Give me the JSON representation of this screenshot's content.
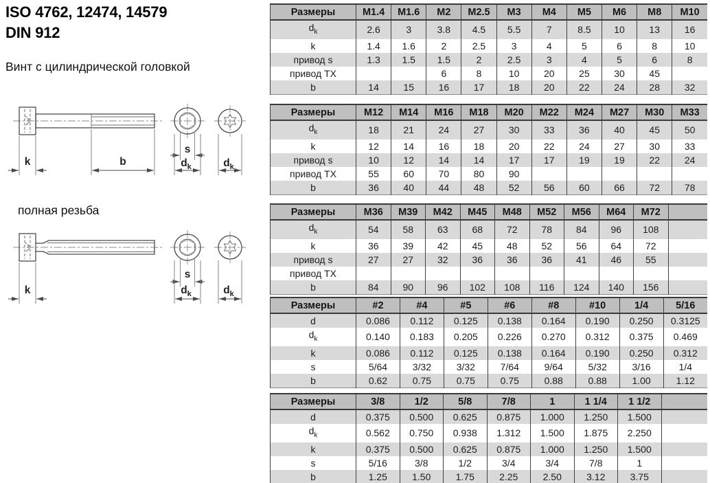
{
  "header": {
    "title_line1": "ISO 4762, 12474, 14579",
    "title_line2": "DIN 912",
    "subtitle": "Винт с цилиндрической головкой"
  },
  "drawings": {
    "full_thread_caption": "полная резьба",
    "dim_labels": {
      "k": "k",
      "b": "b",
      "s": "s",
      "dk_base": "d",
      "dk_sub": "k"
    }
  },
  "colors": {
    "header_bg": "#bfbfbf",
    "stripe_bg": "#d9d9d9",
    "border": "#3f3f3f",
    "text": "#1d1d1d"
  },
  "tables": [
    {
      "columns": [
        "Размеры",
        "M1.4",
        "M1.6",
        "M2",
        "M2.5",
        "M3",
        "M4",
        "M5",
        "M6",
        "M8",
        "M10"
      ],
      "trailing_blank": false,
      "rows": [
        {
          "label": "d_k",
          "values": [
            "2.6",
            "3",
            "3.8",
            "4.5",
            "5.5",
            "7",
            "8.5",
            "10",
            "13",
            "16"
          ]
        },
        {
          "label": "k",
          "values": [
            "1.4",
            "1.6",
            "2",
            "2.5",
            "3",
            "4",
            "5",
            "6",
            "8",
            "10"
          ]
        },
        {
          "label": "привод s",
          "values": [
            "1.3",
            "1.5",
            "1.5",
            "2",
            "2.5",
            "3",
            "4",
            "5",
            "6",
            "8"
          ]
        },
        {
          "label": "привод TX",
          "values": [
            "",
            "",
            "6",
            "8",
            "10",
            "20",
            "25",
            "30",
            "45",
            ""
          ]
        },
        {
          "label": "b",
          "values": [
            "14",
            "15",
            "16",
            "17",
            "18",
            "20",
            "22",
            "24",
            "28",
            "32"
          ]
        }
      ]
    },
    {
      "columns": [
        "Размеры",
        "M12",
        "M14",
        "M16",
        "M18",
        "M20",
        "M22",
        "M24",
        "M27",
        "M30",
        "M33"
      ],
      "trailing_blank": false,
      "rows": [
        {
          "label": "d_k",
          "values": [
            "18",
            "21",
            "24",
            "27",
            "30",
            "33",
            "36",
            "40",
            "45",
            "50"
          ]
        },
        {
          "label": "k",
          "values": [
            "12",
            "14",
            "16",
            "18",
            "20",
            "22",
            "24",
            "27",
            "30",
            "33"
          ]
        },
        {
          "label": "привод s",
          "values": [
            "10",
            "12",
            "14",
            "14",
            "17",
            "17",
            "19",
            "19",
            "22",
            "24"
          ]
        },
        {
          "label": "привод TX",
          "values": [
            "55",
            "60",
            "70",
            "80",
            "90",
            "",
            "",
            "",
            "",
            ""
          ]
        },
        {
          "label": "b",
          "values": [
            "36",
            "40",
            "44",
            "48",
            "52",
            "56",
            "60",
            "66",
            "72",
            "78"
          ]
        }
      ]
    },
    {
      "columns": [
        "Размеры",
        "M36",
        "M39",
        "M42",
        "M45",
        "M48",
        "M52",
        "M56",
        "M64",
        "M72"
      ],
      "trailing_blank": true,
      "rows": [
        {
          "label": "d_k",
          "values": [
            "54",
            "58",
            "63",
            "68",
            "72",
            "78",
            "84",
            "96",
            "108"
          ]
        },
        {
          "label": "k",
          "values": [
            "36",
            "39",
            "42",
            "45",
            "48",
            "52",
            "56",
            "64",
            "72"
          ]
        },
        {
          "label": "привод s",
          "values": [
            "27",
            "27",
            "32",
            "36",
            "36",
            "36",
            "41",
            "46",
            "55"
          ]
        },
        {
          "label": "привод TX",
          "values": [
            "",
            "",
            "",
            "",
            "",
            "",
            "",
            "",
            ""
          ]
        },
        {
          "label": "b",
          "values": [
            "84",
            "90",
            "96",
            "102",
            "108",
            "116",
            "124",
            "140",
            "156"
          ]
        }
      ]
    },
    {
      "columns": [
        "Размеры",
        "#2",
        "#4",
        "#5",
        "#6",
        "#8",
        "#10",
        "1/4",
        "5/16"
      ],
      "trailing_blank": false,
      "rows": [
        {
          "label": "d",
          "values": [
            "0.086",
            "0.112",
            "0.125",
            "0.138",
            "0.164",
            "0.190",
            "0.250",
            "0.3125"
          ]
        },
        {
          "label": "d_k",
          "values": [
            "0.140",
            "0.183",
            "0.205",
            "0.226",
            "0.270",
            "0.312",
            "0.375",
            "0.469"
          ]
        },
        {
          "label": "k",
          "values": [
            "0.086",
            "0.112",
            "0.125",
            "0.138",
            "0.164",
            "0.190",
            "0.250",
            "0.312"
          ]
        },
        {
          "label": "s",
          "values": [
            "5/64",
            "3/32",
            "3/32",
            "7/64",
            "9/64",
            "5/32",
            "3/16",
            "1/4"
          ]
        },
        {
          "label": "b",
          "values": [
            "0.62",
            "0.75",
            "0.75",
            "0.75",
            "0.88",
            "0.88",
            "1.00",
            "1.12"
          ]
        }
      ]
    },
    {
      "columns": [
        "Размеры",
        "3/8",
        "1/2",
        "5/8",
        "7/8",
        "1",
        "1 1/4",
        "1 1/2"
      ],
      "trailing_blank": true,
      "rows": [
        {
          "label": "d",
          "values": [
            "0.375",
            "0.500",
            "0.625",
            "0.875",
            "1.000",
            "1.250",
            "1.500"
          ]
        },
        {
          "label": "d_k",
          "values": [
            "0.562",
            "0.750",
            "0.938",
            "1.312",
            "1.500",
            "1.875",
            "2.250"
          ]
        },
        {
          "label": "k",
          "values": [
            "0.375",
            "0.500",
            "0.625",
            "0.875",
            "1.000",
            "1.250",
            "1.500"
          ]
        },
        {
          "label": "s",
          "values": [
            "5/16",
            "3/8",
            "1/2",
            "3/4",
            "3/4",
            "7/8",
            "1"
          ]
        },
        {
          "label": "b",
          "values": [
            "1.25",
            "1.50",
            "1.75",
            "2.25",
            "2.50",
            "3.12",
            "3.75"
          ]
        }
      ]
    }
  ]
}
